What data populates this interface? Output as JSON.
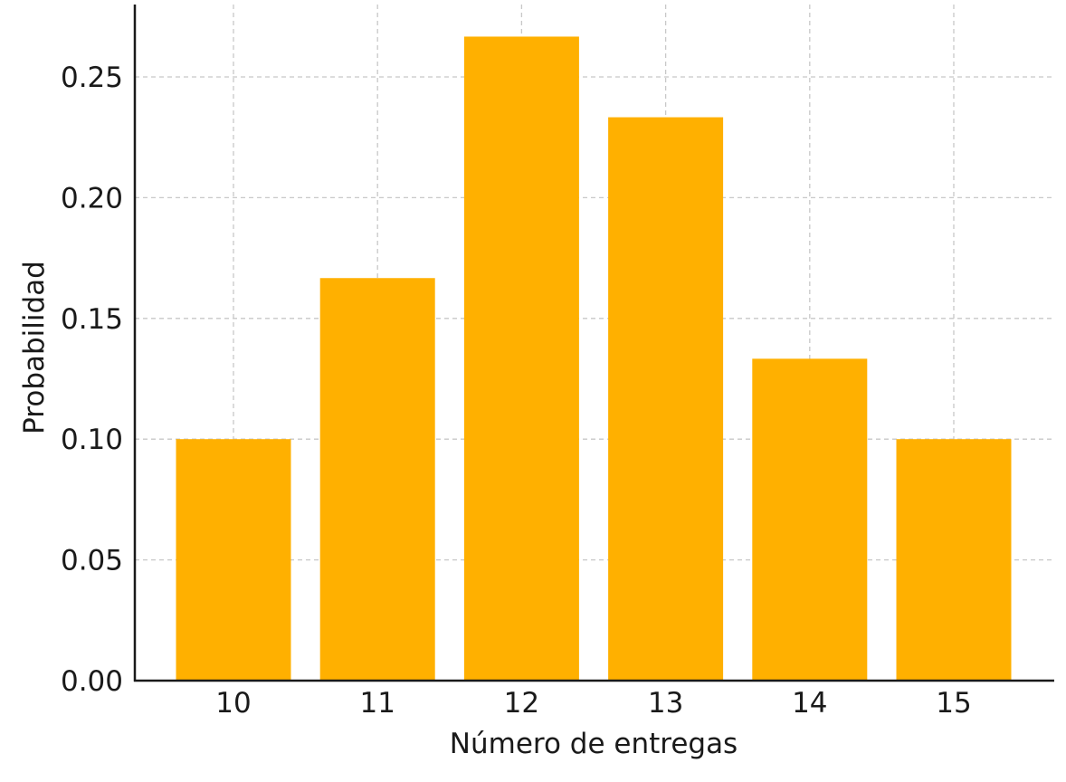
{
  "chart_data": {
    "type": "bar",
    "title": "",
    "xlabel": "Número de entregas",
    "ylabel": "Probabilidad",
    "categories": [
      "10",
      "11",
      "12",
      "13",
      "14",
      "15"
    ],
    "values": [
      0.1,
      0.1667,
      0.2667,
      0.2333,
      0.1333,
      0.1
    ],
    "ylim": [
      0,
      0.28
    ],
    "yticks": [
      0.0,
      0.05,
      0.1,
      0.15,
      0.2,
      0.25
    ],
    "ytick_labels": [
      "0.00",
      "0.05",
      "0.10",
      "0.15",
      "0.20",
      "0.25"
    ],
    "grid": true,
    "legend": "none",
    "colors": {
      "bar": "#FFB000",
      "grid": "#c8c8c8",
      "axis": "#1a1a1a"
    }
  }
}
